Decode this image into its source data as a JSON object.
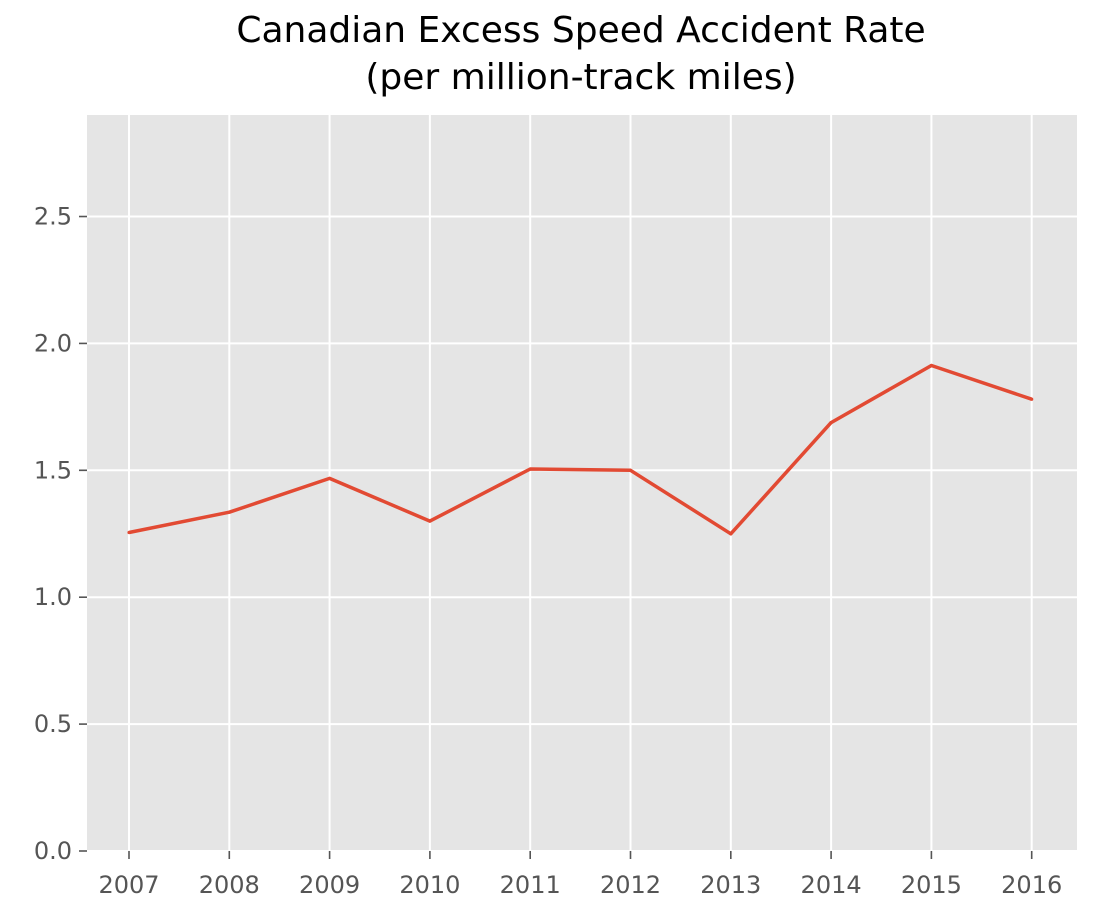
{
  "chart_data": {
    "type": "line",
    "title_lines": [
      "Canadian Excess Speed Accident Rate",
      "(per million-track miles)"
    ],
    "xlabel": "",
    "ylabel": "",
    "x": [
      "2007",
      "2008",
      "2009",
      "2010",
      "2011",
      "2012",
      "2013",
      "2014",
      "2015",
      "2016"
    ],
    "series": [
      {
        "values": [
          1.255,
          1.335,
          1.468,
          1.3,
          1.505,
          1.5,
          1.25,
          1.688,
          1.913,
          1.78
        ],
        "color": "#E24A33"
      }
    ],
    "ylim": [
      0,
      2.9
    ],
    "yticks": [
      "0.0",
      "0.5",
      "1.0",
      "1.5",
      "2.0",
      "2.5"
    ],
    "grid": true,
    "legend": "none",
    "background_color": "#E5E5E5",
    "grid_color": "#FFFFFF"
  }
}
